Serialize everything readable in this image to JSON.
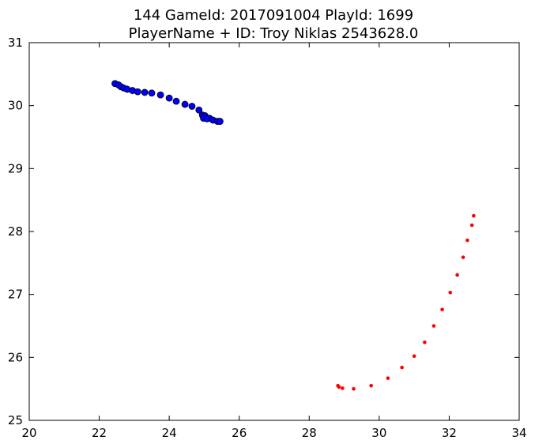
{
  "chart_data": {
    "type": "scatter",
    "title": "144 GameId: 2017091004 PlayId: 1699",
    "subtitle": "PlayerName + ID: Troy Niklas 2543628.0",
    "xlabel": "",
    "ylabel": "",
    "xlim": [
      20,
      34
    ],
    "ylim": [
      25,
      31
    ],
    "xticks": [
      "20",
      "22",
      "24",
      "26",
      "28",
      "30",
      "32",
      "34"
    ],
    "yticks": [
      "25",
      "26",
      "27",
      "28",
      "29",
      "30",
      "31"
    ],
    "grid": false,
    "series": [
      {
        "color": "#0000ff",
        "marker": "large-dot",
        "points": [
          [
            22.45,
            30.35
          ],
          [
            22.55,
            30.33
          ],
          [
            22.62,
            30.3
          ],
          [
            22.7,
            30.28
          ],
          [
            22.8,
            30.26
          ],
          [
            22.95,
            30.24
          ],
          [
            23.1,
            30.22
          ],
          [
            23.3,
            30.21
          ],
          [
            23.5,
            30.2
          ],
          [
            23.75,
            30.17
          ],
          [
            24.0,
            30.12
          ],
          [
            24.2,
            30.07
          ],
          [
            24.45,
            30.02
          ],
          [
            24.65,
            29.99
          ],
          [
            24.85,
            29.93
          ],
          [
            24.95,
            29.85
          ],
          [
            25.02,
            29.84
          ],
          [
            25.15,
            29.8
          ],
          [
            25.25,
            29.77
          ],
          [
            25.38,
            29.75
          ],
          [
            25.45,
            29.75
          ],
          [
            24.98,
            29.8
          ],
          [
            25.08,
            29.79
          ]
        ]
      },
      {
        "color": "#ff0000",
        "marker": "small-dot",
        "points": [
          [
            32.7,
            28.25
          ],
          [
            32.65,
            28.1
          ],
          [
            32.52,
            27.86
          ],
          [
            32.4,
            27.59
          ],
          [
            32.23,
            27.31
          ],
          [
            32.03,
            27.03
          ],
          [
            31.8,
            26.76
          ],
          [
            31.56,
            26.5
          ],
          [
            31.3,
            26.24
          ],
          [
            31.0,
            26.02
          ],
          [
            30.65,
            25.84
          ],
          [
            30.25,
            25.67
          ],
          [
            29.77,
            25.55
          ],
          [
            29.27,
            25.5
          ],
          [
            28.95,
            25.51
          ],
          [
            28.85,
            25.53
          ],
          [
            28.82,
            25.55
          ]
        ]
      }
    ]
  }
}
